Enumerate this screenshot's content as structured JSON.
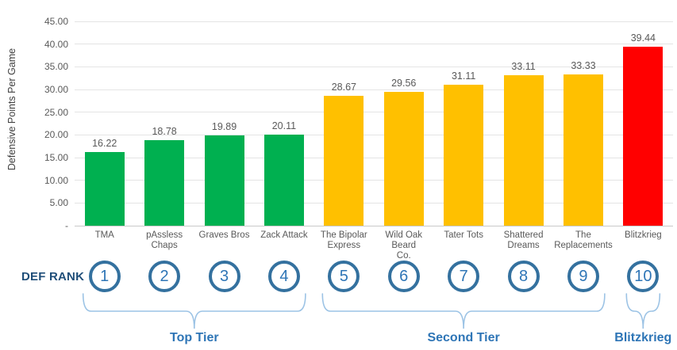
{
  "chart_data": {
    "type": "bar",
    "title": "",
    "xlabel": "",
    "ylabel": "Defensive Points Per Game",
    "ylim": [
      0,
      45
    ],
    "grid": true,
    "legend_position": "none",
    "yticks": [
      {
        "value": 45,
        "label": "45.00"
      },
      {
        "value": 40,
        "label": "40.00"
      },
      {
        "value": 35,
        "label": "35.00"
      },
      {
        "value": 30,
        "label": "30.00"
      },
      {
        "value": 25,
        "label": "25.00"
      },
      {
        "value": 20,
        "label": "20.00"
      },
      {
        "value": 15,
        "label": "15.00"
      },
      {
        "value": 10,
        "label": "10.00"
      },
      {
        "value": 5,
        "label": "5.00"
      },
      {
        "value": 0,
        "label": "-"
      }
    ],
    "categories": [
      "TMA",
      "pAssless Chaps",
      "Graves Bros",
      "Zack Attack",
      "The Bipolar\nExpress",
      "Wild Oak Beard\nCo.",
      "Tater Tots",
      "Shattered\nDreams",
      "The\nReplacements",
      "Blitzkrieg"
    ],
    "values": [
      16.22,
      18.78,
      19.89,
      20.11,
      28.67,
      29.56,
      31.11,
      33.11,
      33.33,
      39.44
    ],
    "value_labels": [
      "16.22",
      "18.78",
      "19.89",
      "20.11",
      "28.67",
      "29.56",
      "31.11",
      "33.11",
      "33.33",
      "39.44"
    ],
    "bar_colors": [
      "#00B050",
      "#00B050",
      "#00B050",
      "#00B050",
      "#FFC000",
      "#FFC000",
      "#FFC000",
      "#FFC000",
      "#FFC000",
      "#FF0000"
    ]
  },
  "rank_annotation": {
    "label": "DEF RANK",
    "ranks": [
      "1",
      "2",
      "3",
      "4",
      "5",
      "6",
      "7",
      "8",
      "9",
      "10"
    ]
  },
  "tier_annotations": [
    {
      "label": "Top Tier",
      "start_index": 0,
      "end_index": 3
    },
    {
      "label": "Second Tier",
      "start_index": 4,
      "end_index": 8
    },
    {
      "label": "Blitzkrieg",
      "start_index": 9,
      "end_index": 9
    }
  ],
  "colors": {
    "top_tier_bar": "#00B050",
    "second_tier_bar": "#FFC000",
    "blitzkrieg_bar": "#FF0000",
    "gridline": "#E4E4E4",
    "baseline": "#C9C9C9",
    "tick_text": "#595959",
    "value_text": "#595959",
    "axis_title_text": "#404040",
    "rank_ring": "#34719F",
    "rank_number": "#2E75B6",
    "def_rank_text": "#1F4E79",
    "tier_text": "#2E75B6",
    "brace": "#9CC3E5"
  }
}
